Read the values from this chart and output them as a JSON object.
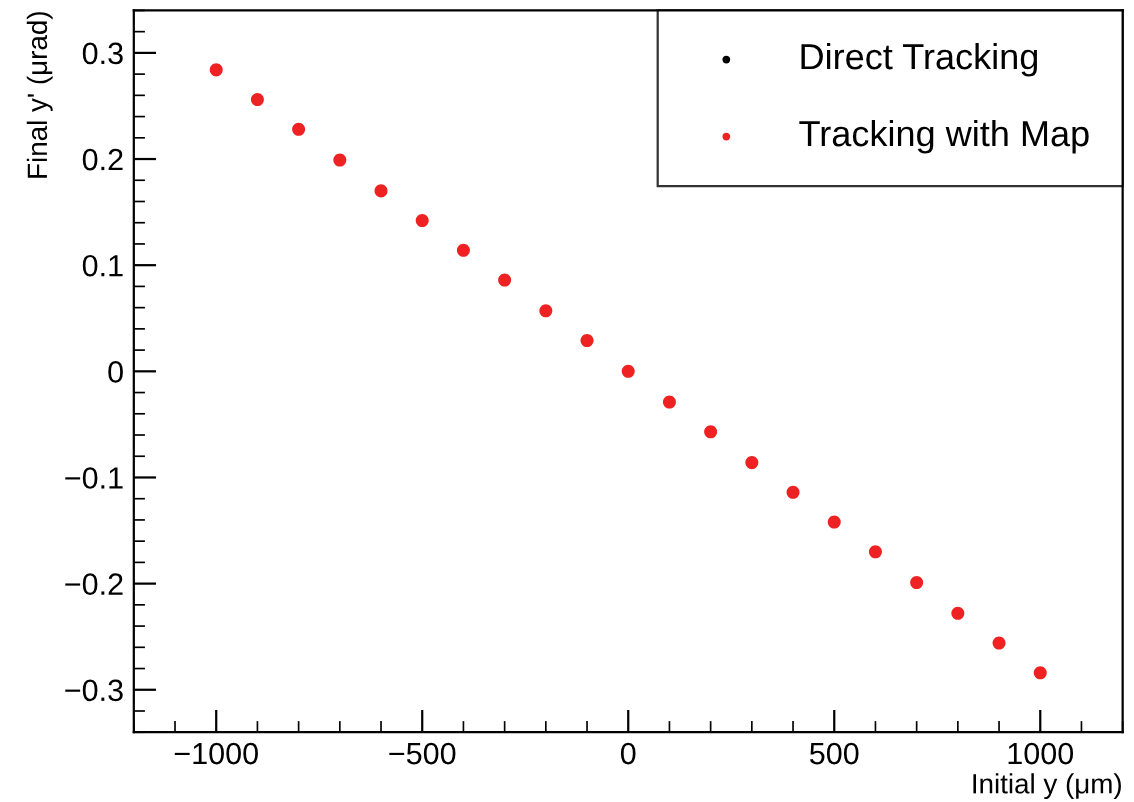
{
  "chart_data": {
    "type": "scatter",
    "xlabel": "Initial y (μm)",
    "ylabel": "Final y' (μrad)",
    "x": [
      -1000,
      -900,
      -800,
      -700,
      -600,
      -500,
      -400,
      -300,
      -200,
      -100,
      0,
      100,
      200,
      300,
      400,
      500,
      600,
      700,
      800,
      900,
      1000
    ],
    "series": [
      {
        "name": "Direct Tracking",
        "color": "#000000",
        "values": [
          null,
          null,
          null,
          null,
          null,
          null,
          null,
          null,
          null,
          null,
          null,
          null,
          null,
          null,
          null,
          null,
          null,
          null,
          null,
          null,
          null
        ]
      },
      {
        "name": "Tracking with Map",
        "color": "#ee2222",
        "values": [
          0.284,
          0.256,
          0.228,
          0.199,
          0.17,
          0.142,
          0.114,
          0.086,
          0.057,
          0.029,
          0.0,
          -0.029,
          -0.057,
          -0.086,
          -0.114,
          -0.142,
          -0.17,
          -0.199,
          -0.228,
          -0.256,
          -0.284
        ]
      }
    ],
    "xlim": [
      -1200,
      1200
    ],
    "ylim": [
      -0.34,
      0.34
    ],
    "xticks": [
      {
        "value": -1000,
        "label": "−1000"
      },
      {
        "value": -500,
        "label": "−500"
      },
      0,
      500,
      1000
    ],
    "yticks": [
      {
        "value": -0.3,
        "label": "−0.3"
      },
      {
        "value": -0.2,
        "label": "−0.2"
      },
      {
        "value": -0.1,
        "label": "−0.1"
      },
      0,
      0.1,
      0.2,
      0.3
    ],
    "marker": "circle",
    "legend": "top right",
    "grid": false
  }
}
